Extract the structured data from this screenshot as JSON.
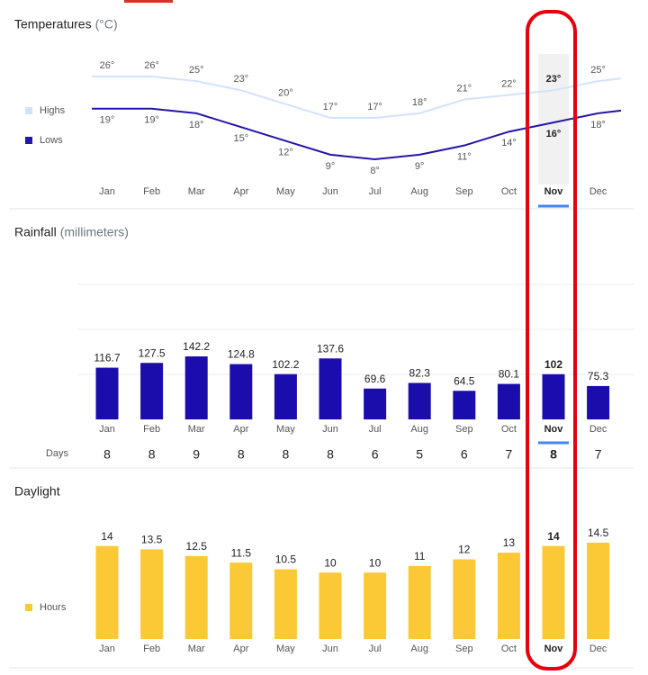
{
  "chart_data": [
    {
      "type": "line",
      "title": "Temperatures",
      "unit": "(°C)",
      "highlight": "Nov",
      "categories": [
        "Jan",
        "Feb",
        "Mar",
        "Apr",
        "May",
        "Jun",
        "Jul",
        "Aug",
        "Sep",
        "Oct",
        "Nov",
        "Dec"
      ],
      "series": [
        {
          "name": "Highs",
          "color": "#d2e3fc",
          "values": [
            26,
            26,
            25,
            23,
            20,
            17,
            17,
            18,
            21,
            22,
            23,
            25
          ],
          "value_labels": [
            "26°",
            "26°",
            "25°",
            "23°",
            "20°",
            "17°",
            "17°",
            "18°",
            "21°",
            "22°",
            "23°",
            "25°"
          ]
        },
        {
          "name": "Lows",
          "color": "#2416a8",
          "values": [
            19,
            19,
            18,
            15,
            12,
            9,
            8,
            9,
            11,
            14,
            16,
            18
          ],
          "value_labels": [
            "19°",
            "19°",
            "18°",
            "15°",
            "12°",
            "9°",
            "8°",
            "9°",
            "11°",
            "14°",
            "16°",
            "18°"
          ]
        }
      ]
    },
    {
      "type": "bar",
      "title": "Rainfall",
      "unit": "(millimeters)",
      "highlight": "Nov",
      "color": "#1a0dab",
      "categories": [
        "Jan",
        "Feb",
        "Mar",
        "Apr",
        "May",
        "Jun",
        "Jul",
        "Aug",
        "Sep",
        "Oct",
        "Nov",
        "Dec"
      ],
      "values": [
        116.7,
        127.5,
        142.2,
        124.8,
        102.2,
        137.6,
        69.6,
        82.3,
        64.5,
        80.1,
        102,
        75.3
      ],
      "days_label": "Days",
      "days": [
        8,
        8,
        9,
        8,
        8,
        8,
        6,
        5,
        6,
        7,
        8,
        7
      ]
    },
    {
      "type": "bar",
      "title": "Daylight",
      "highlight": "Nov",
      "legend": "Hours",
      "color": "#fbc935",
      "categories": [
        "Jan",
        "Feb",
        "Mar",
        "Apr",
        "May",
        "Jun",
        "Jul",
        "Aug",
        "Sep",
        "Oct",
        "Nov",
        "Dec"
      ],
      "values": [
        14,
        13.5,
        12.5,
        11.5,
        10.5,
        10,
        10,
        11,
        12,
        13,
        14,
        14.5
      ]
    }
  ]
}
